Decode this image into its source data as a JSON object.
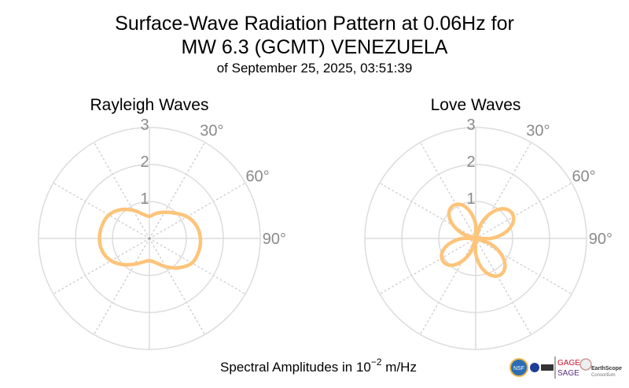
{
  "chart_data": [
    {
      "type": "line",
      "subtype": "polar",
      "title": "Rayleigh Waves",
      "angle_unit": "degrees (clockwise from north)",
      "theta": [
        0,
        15,
        30,
        45,
        60,
        75,
        90,
        105,
        120,
        135,
        150,
        165,
        180,
        195,
        210,
        225,
        240,
        255,
        270,
        285,
        300,
        315,
        330,
        345
      ],
      "r": [
        0.6,
        0.7,
        0.82,
        0.97,
        1.18,
        1.32,
        1.38,
        1.38,
        1.33,
        1.12,
        0.88,
        0.68,
        0.6,
        0.66,
        0.8,
        1.0,
        1.2,
        1.32,
        1.35,
        1.33,
        1.27,
        1.1,
        0.88,
        0.68
      ],
      "rlim": [
        0,
        3
      ],
      "radial_ticks": [
        "1",
        "2",
        "3"
      ],
      "angular_ticks": [
        "30°",
        "60°",
        "90°"
      ],
      "color": "#fdc47a"
    },
    {
      "type": "line",
      "subtype": "polar",
      "title": "Love Waves",
      "angle_unit": "degrees (clockwise from north)",
      "theta": [
        0,
        10,
        20,
        30,
        40,
        50,
        60,
        70,
        80,
        90,
        100,
        110,
        120,
        130,
        140,
        150,
        160,
        170,
        180,
        190,
        200,
        210,
        220,
        230,
        240,
        250,
        260,
        270,
        280,
        290,
        300,
        310,
        320,
        330,
        340,
        350
      ],
      "r": [
        0.37,
        0,
        0.41,
        0.77,
        1.04,
        1.18,
        1.18,
        1.04,
        0.77,
        0.41,
        0,
        0.41,
        0.76,
        1.03,
        1.17,
        1.17,
        1.03,
        0.76,
        0.41,
        0,
        0.37,
        0.69,
        0.94,
        1.06,
        1.06,
        0.94,
        0.69,
        0.37,
        0,
        0.37,
        0.69,
        0.94,
        1.06,
        1.06,
        0.94,
        0.69
      ],
      "rlim": [
        0,
        3
      ],
      "radial_ticks": [
        "1",
        "2",
        "3"
      ],
      "angular_ticks": [
        "30°",
        "60°",
        "90°"
      ],
      "color": "#fdc47a"
    }
  ],
  "title_line1": "Surface-Wave Radiation Pattern at 0.06Hz for",
  "title_line2": "MW 6.3 (GCMT) VENEZUELA",
  "subtitle": "of September 25, 2025, 03:51:39",
  "xlabel_prefix": "Spectral Amplitudes in 10",
  "xlabel_exp": "−2",
  "xlabel_suffix": " m/Hz",
  "logos": {
    "nsf": "NSF",
    "gage": "GAGE",
    "sage": "SAGE",
    "earthscope": "EarthScope",
    "consortium": "Consortium"
  }
}
